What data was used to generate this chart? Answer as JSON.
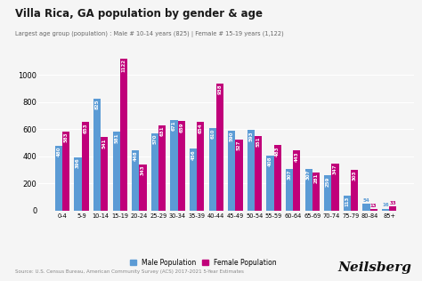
{
  "title": "Villa Rica, GA population by gender & age",
  "subtitle": "Largest age group (population) : Male # 10-14 years (825) | Female # 15-19 years (1,122)",
  "source": "Source: U.S. Census Bureau, American Community Survey (ACS) 2017-2021 5-Year Estimates",
  "categories": [
    "0-4",
    "5-9",
    "10-14",
    "15-19",
    "20-24",
    "25-29",
    "30-34",
    "35-39",
    "40-44",
    "45-49",
    "50-54",
    "55-59",
    "60-64",
    "65-69",
    "70-74",
    "75-79",
    "80-84",
    "85+"
  ],
  "male": [
    480,
    396,
    825,
    581,
    448,
    570,
    671,
    456,
    610,
    590,
    593,
    408,
    307,
    307,
    259,
    113,
    54,
    16
  ],
  "female": [
    583,
    653,
    541,
    1122,
    343,
    631,
    659,
    654,
    938,
    527,
    551,
    483,
    443,
    281,
    347,
    303,
    13,
    33
  ],
  "male_color": "#5B9BD5",
  "female_color": "#C0007A",
  "bg_color": "#F5F5F5",
  "ylim": [
    0,
    1200
  ],
  "yticks": [
    0,
    200,
    400,
    600,
    800,
    1000
  ],
  "bar_label_fontsize": 4.0,
  "label_threshold": 60,
  "neilsberg_text": "Neilsberg"
}
